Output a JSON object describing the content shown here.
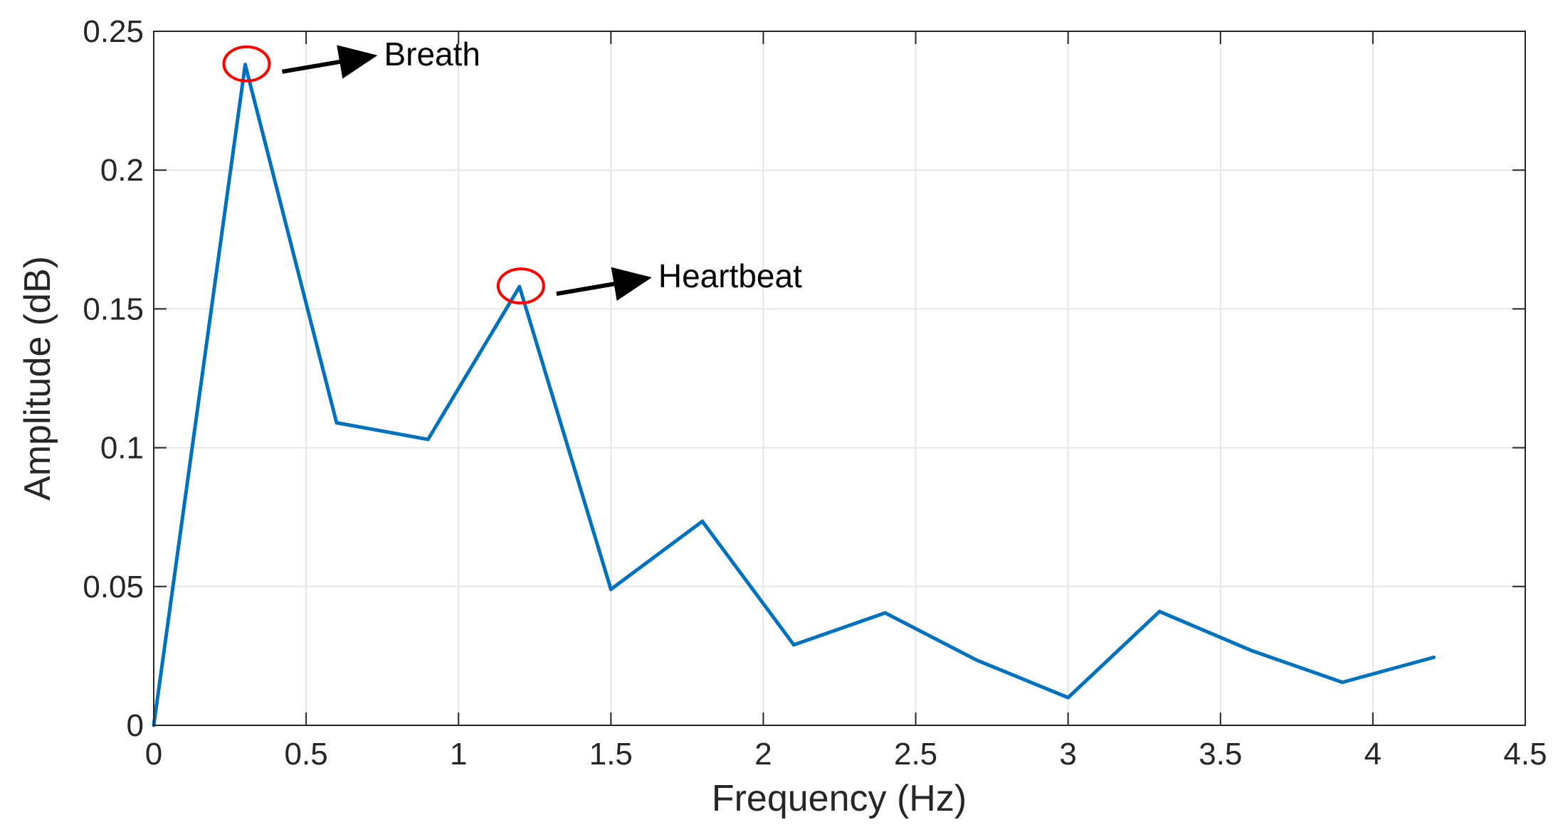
{
  "chart_data": {
    "type": "line",
    "title": "",
    "xlabel": "Frequency (Hz)",
    "ylabel": "Amplitude (dB)",
    "xlim": [
      0,
      4.5
    ],
    "ylim": [
      0,
      0.25
    ],
    "xticks": [
      0,
      0.5,
      1,
      1.5,
      2,
      2.5,
      3,
      3.5,
      4,
      4.5
    ],
    "xtick_labels": [
      "0",
      "0.5",
      "1",
      "1.5",
      "2",
      "2.5",
      "3",
      "3.5",
      "4",
      "4.5"
    ],
    "yticks": [
      0,
      0.05,
      0.1,
      0.15,
      0.2,
      0.25
    ],
    "ytick_labels": [
      "0",
      "0.05",
      "0.1",
      "0.15",
      "0.2",
      "0.25"
    ],
    "grid": true,
    "legend": "none",
    "line_color": "#0072BD",
    "series": [
      {
        "x": [
          0,
          0.3,
          0.6,
          0.9,
          1.2,
          1.5,
          1.8,
          2.1,
          2.4,
          2.7,
          3.0,
          3.3,
          3.6,
          3.9,
          4.2
        ],
        "y": [
          0,
          0.238,
          0.109,
          0.103,
          0.158,
          0.049,
          0.0735,
          0.029,
          0.0405,
          0.0235,
          0.01,
          0.041,
          0.027,
          0.0155,
          0.0245
        ]
      }
    ],
    "annotations": [
      {
        "text": "Breath",
        "x": 0.3,
        "y": 0.238,
        "marker_color": "#FF0000"
      },
      {
        "text": "Heartbeat",
        "x": 1.2,
        "y": 0.158,
        "marker_color": "#FF0000"
      }
    ]
  }
}
